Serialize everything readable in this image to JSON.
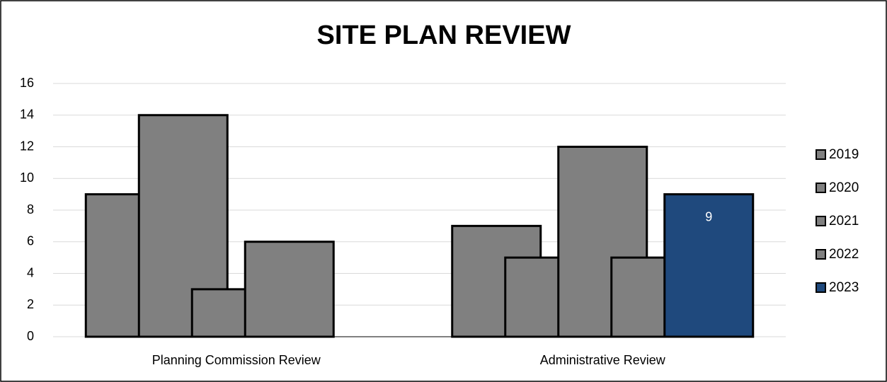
{
  "chart_data": {
    "type": "bar",
    "title": "SITE PLAN REVIEW",
    "categories": [
      "Planning Commission Review",
      "Administrative Review"
    ],
    "series": [
      {
        "name": "2019",
        "color": "#808080",
        "values": [
          9,
          7
        ]
      },
      {
        "name": "2020",
        "color": "#808080",
        "values": [
          14,
          5
        ]
      },
      {
        "name": "2021",
        "color": "#808080",
        "values": [
          3,
          12
        ]
      },
      {
        "name": "2022",
        "color": "#808080",
        "values": [
          6,
          5
        ]
      },
      {
        "name": "2023",
        "color": "#1f497d",
        "values": [
          0,
          9
        ],
        "data_labels": true
      }
    ],
    "ylim": [
      0,
      16
    ],
    "yticks": [
      0,
      2,
      4,
      6,
      8,
      10,
      12,
      14,
      16
    ],
    "grid": true,
    "legend": "right"
  }
}
